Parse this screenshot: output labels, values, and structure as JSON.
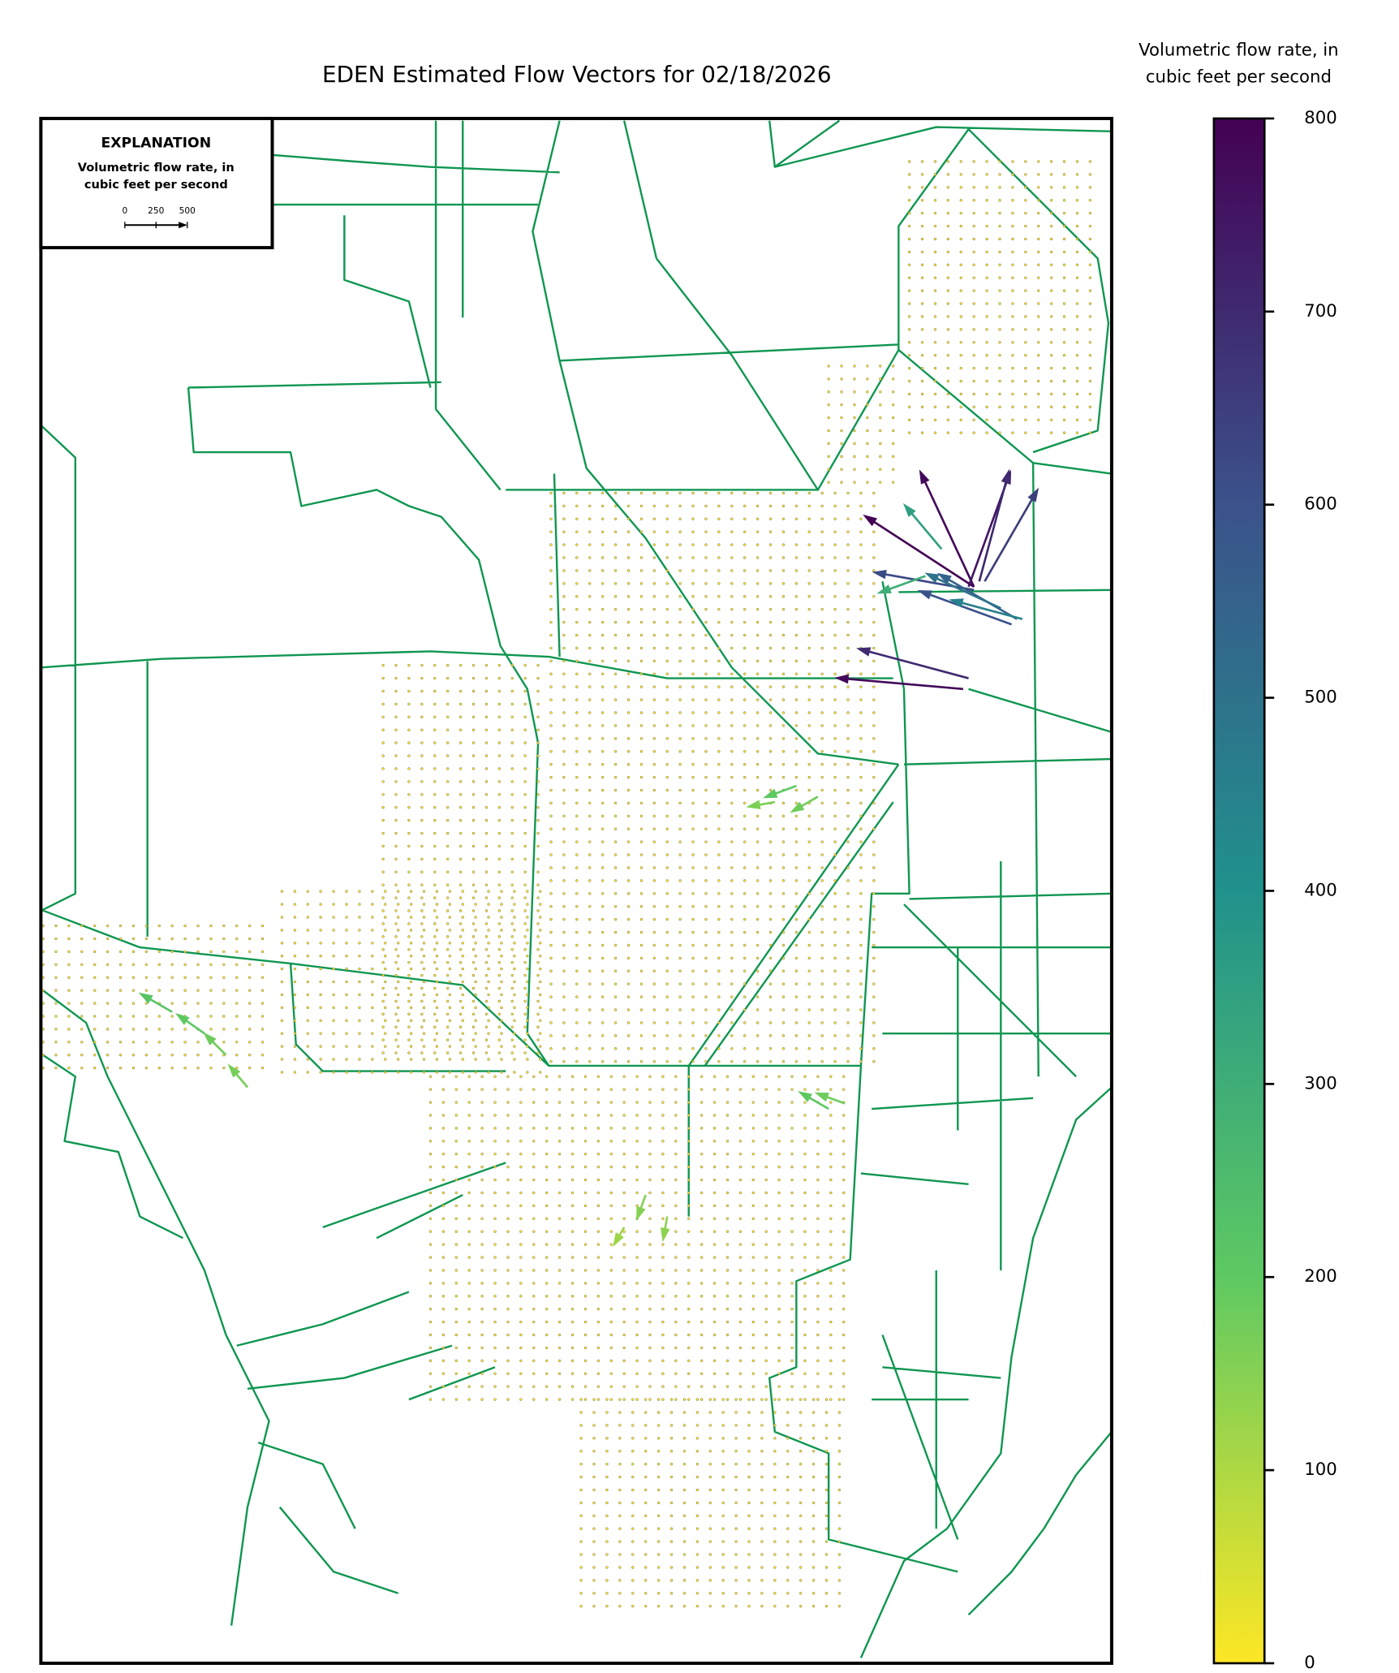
{
  "chart_data": {
    "type": "quiver",
    "title": "EDEN Estimated Flow Vectors for 02/18/2026",
    "colorbar_label": [
      "Volumetric flow rate, in",
      "cubic feet per second"
    ],
    "clim": [
      0,
      800
    ],
    "cticks": [
      0,
      100,
      200,
      300,
      400,
      500,
      600,
      700,
      800
    ],
    "colormap": [
      "#fde725",
      "#5ec962",
      "#21918c",
      "#3b528b",
      "#440154"
    ],
    "explanation": {
      "title": "EXPLANATION",
      "lines": [
        "Volumetric flow rate, in",
        "cubic feet per second"
      ],
      "scale_ticks": [
        0,
        250,
        500
      ]
    },
    "vectors": [
      {
        "value": 800,
        "direction": 147
      },
      {
        "value": 780,
        "direction": 115
      },
      {
        "value": 750,
        "direction": 70
      },
      {
        "value": 700,
        "direction": 75
      },
      {
        "value": 650,
        "direction": 60
      },
      {
        "value": 620,
        "direction": 170
      },
      {
        "value": 780,
        "direction": 175
      },
      {
        "value": 700,
        "direction": 165
      },
      {
        "value": 600,
        "direction": 160
      },
      {
        "value": 550,
        "direction": 150
      },
      {
        "value": 500,
        "direction": 155
      },
      {
        "value": 300,
        "direction": 200
      },
      {
        "value": 350,
        "direction": 130
      },
      {
        "value": 450,
        "direction": 165
      },
      {
        "value": 200,
        "direction": 200
      },
      {
        "value": 180,
        "direction": 210
      },
      {
        "value": 160,
        "direction": 190
      },
      {
        "value": 220,
        "direction": 150
      },
      {
        "value": 200,
        "direction": 145
      },
      {
        "value": 180,
        "direction": 135
      },
      {
        "value": 170,
        "direction": 130
      },
      {
        "value": 200,
        "direction": 150
      },
      {
        "value": 180,
        "direction": 160
      },
      {
        "value": 150,
        "direction": 250
      },
      {
        "value": 140,
        "direction": 260
      },
      {
        "value": 120,
        "direction": 240
      }
    ]
  }
}
